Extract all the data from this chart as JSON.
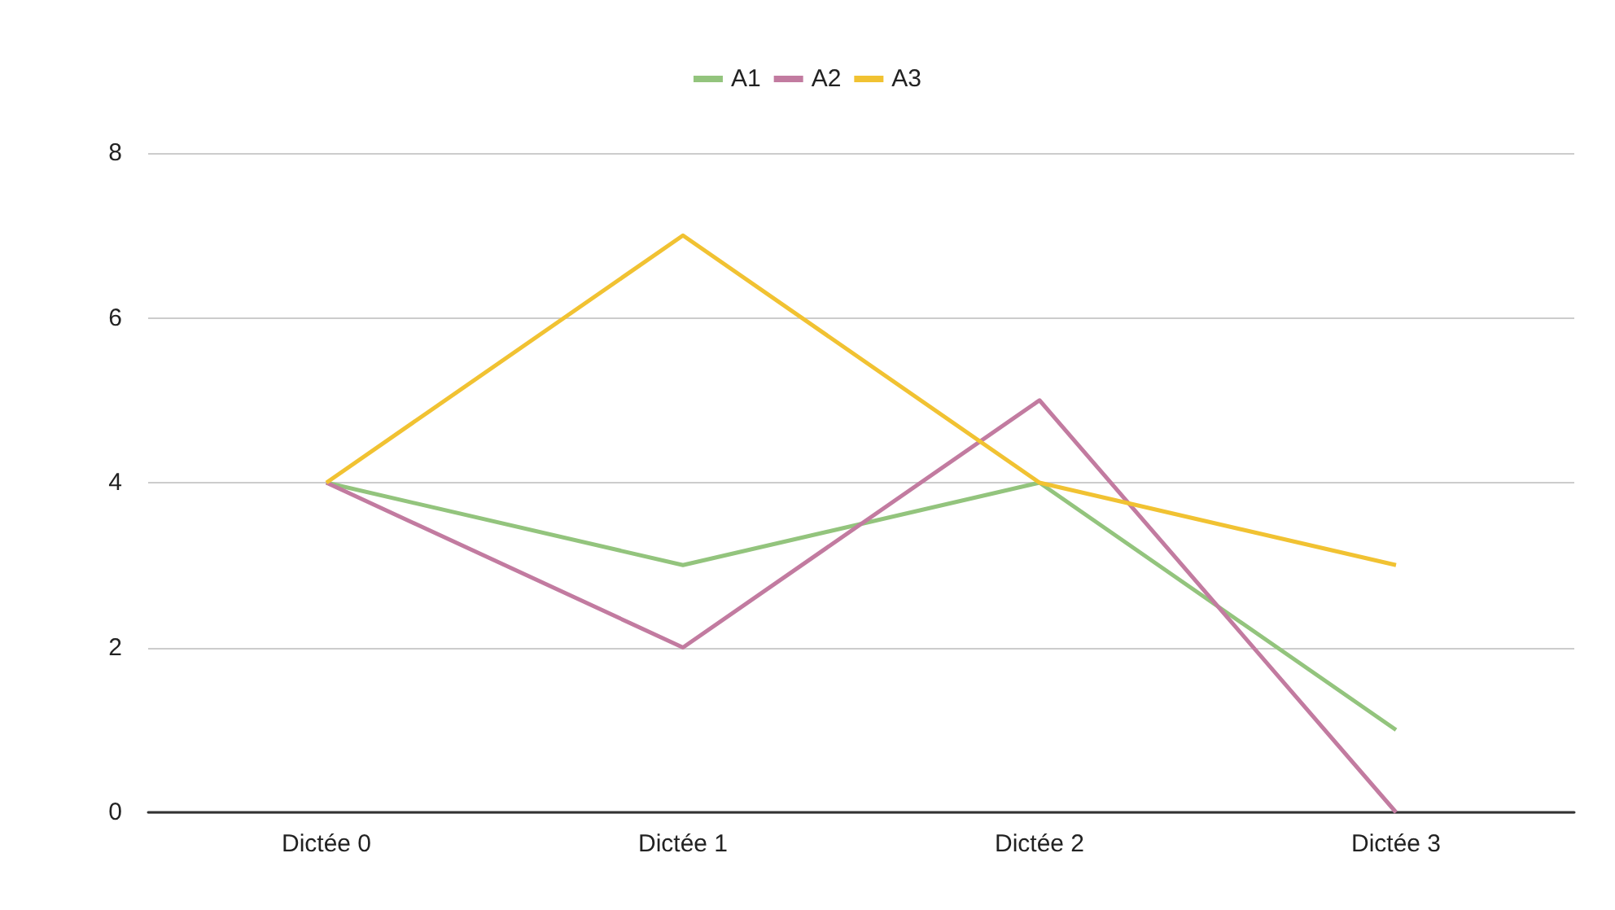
{
  "chart_data": {
    "type": "line",
    "categories": [
      "Dictée 0",
      "Dictée 1",
      "Dictée 2",
      "Dictée 3"
    ],
    "series": [
      {
        "name": "A1",
        "color": "#93c47d",
        "values": [
          4,
          3,
          4,
          1
        ]
      },
      {
        "name": "A2",
        "color": "#c27ba0",
        "values": [
          4,
          2,
          5,
          0
        ]
      },
      {
        "name": "A3",
        "color": "#f1c232",
        "values": [
          4,
          7,
          4,
          3
        ]
      }
    ],
    "ylim": [
      0,
      8
    ],
    "yticks": [
      0,
      2,
      4,
      6,
      8
    ],
    "grid": "y",
    "legend": "top",
    "marker": "none",
    "line_style": "solid"
  }
}
